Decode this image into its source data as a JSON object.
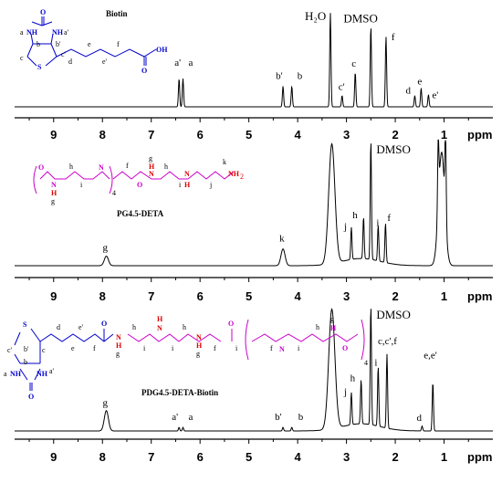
{
  "chart_data": [
    {
      "type": "line",
      "title": "Biotin",
      "xlabel": "ppm",
      "xlim": [
        9.8,
        0.0
      ],
      "xticks": [
        "9",
        "8",
        "7",
        "6",
        "5",
        "4",
        "3",
        "2",
        "1"
      ],
      "peaks": [
        {
          "label": "a'",
          "ppm": 6.43,
          "height": 0.3
        },
        {
          "label": "a",
          "ppm": 6.35,
          "height": 0.3
        },
        {
          "label": "b'",
          "ppm": 4.3,
          "height": 0.22
        },
        {
          "label": "b",
          "ppm": 4.12,
          "height": 0.22
        },
        {
          "label": "H₂O",
          "ppm": 3.33,
          "height": 1.0
        },
        {
          "label": "c'",
          "ppm": 3.09,
          "height": 0.12
        },
        {
          "label": "c",
          "ppm": 2.82,
          "height": 0.37
        },
        {
          "label": "DMSO",
          "ppm": 2.5,
          "height": 0.86
        },
        {
          "label": "f",
          "ppm": 2.19,
          "height": 0.75
        },
        {
          "label": "d",
          "ppm": 1.6,
          "height": 0.12
        },
        {
          "label": "e",
          "ppm": 1.47,
          "height": 0.2
        },
        {
          "label": "e'",
          "ppm": 1.32,
          "height": 0.13
        }
      ]
    },
    {
      "type": "line",
      "title": "PG4.5-DETA",
      "xlabel": "ppm",
      "xlim": [
        9.8,
        0.0
      ],
      "xticks": [
        "9",
        "8",
        "7",
        "6",
        "5",
        "4",
        "3",
        "2",
        "1"
      ],
      "peaks": [
        {
          "label": "g",
          "ppm": 7.92,
          "height": 0.08
        },
        {
          "label": "k",
          "ppm": 4.3,
          "height": 0.14
        },
        {
          "label": "",
          "ppm": 3.3,
          "height": 1.0
        },
        {
          "label": "j",
          "ppm": 2.9,
          "height": 0.27
        },
        {
          "label": "h",
          "ppm": 2.65,
          "height": 0.35
        },
        {
          "label": "DMSO",
          "ppm": 2.5,
          "height": 1.0
        },
        {
          "label": "i",
          "ppm": 2.35,
          "height": 0.3
        },
        {
          "label": "f",
          "ppm": 2.2,
          "height": 0.33
        },
        {
          "label": "",
          "ppm": 1.12,
          "height": 0.58
        },
        {
          "label": "",
          "ppm": 1.05,
          "height": 0.95
        },
        {
          "label": "",
          "ppm": 0.97,
          "height": 0.75
        }
      ]
    },
    {
      "type": "line",
      "title": "PDG4.5-DETA-Biotin",
      "xlabel": "ppm",
      "xlim": [
        9.8,
        0.0
      ],
      "xticks": [
        "9",
        "8",
        "7",
        "6",
        "5",
        "4",
        "3",
        "2",
        "1"
      ],
      "peaks": [
        {
          "label": "g",
          "ppm": 7.92,
          "height": 0.17
        },
        {
          "label": "a'",
          "ppm": 6.43,
          "height": 0.03
        },
        {
          "label": "a",
          "ppm": 6.35,
          "height": 0.03
        },
        {
          "label": "b'",
          "ppm": 4.3,
          "height": 0.03
        },
        {
          "label": "b",
          "ppm": 4.12,
          "height": 0.03
        },
        {
          "label": "",
          "ppm": 3.3,
          "height": 1.0
        },
        {
          "label": "j",
          "ppm": 2.9,
          "height": 0.27
        },
        {
          "label": "h",
          "ppm": 2.7,
          "height": 0.37
        },
        {
          "label": "DMSO",
          "ppm": 2.5,
          "height": 1.0
        },
        {
          "label": "i",
          "ppm": 2.35,
          "height": 0.5
        },
        {
          "label": "c,c',f",
          "ppm": 2.17,
          "height": 0.62
        },
        {
          "label": "d",
          "ppm": 1.45,
          "height": 0.04
        },
        {
          "label": "e,e'",
          "ppm": 1.23,
          "height": 0.41
        }
      ]
    }
  ],
  "structures": {
    "biotin": {
      "atoms": {
        "nh1": "NH",
        "nh2": "NH",
        "o": "O",
        "s": "S",
        "oh": "OH",
        "o2": "O"
      },
      "labels": {
        "a": "a",
        "a2": "a'",
        "b": "b",
        "b2": "b'",
        "c": "c",
        "c2": "c'",
        "d": "d",
        "e": "e",
        "e2": "e'",
        "f": "f"
      }
    },
    "pg": {
      "atoms": {
        "o1": "O",
        "nh1": "N",
        "h1": "H",
        "n2": "N",
        "o2": "O",
        "n3": "N",
        "h3": "H",
        "n4": "N",
        "h4": "H",
        "nh2": "NH",
        "sub2": "2"
      },
      "labels": {
        "g": "g",
        "h": "h",
        "i": "i",
        "f": "f",
        "g2": "g",
        "h2": "h",
        "i2": "i",
        "j": "j",
        "k": "k",
        "sub4": "4"
      }
    },
    "pdg": {
      "atoms": {
        "s": "S",
        "nh1": "NH",
        "nh2": "NH",
        "o": "O",
        "o2": "O",
        "n1": "N",
        "h1": "H",
        "n2": "N",
        "h2": "H",
        "n3": "N",
        "h3": "H",
        "o3": "O",
        "n4": "N",
        "h4": "H",
        "o4": "O"
      },
      "labels": {
        "a": "a",
        "a2": "a'",
        "b": "b",
        "b2": "b'",
        "c": "c",
        "c2": "c'",
        "d": "d",
        "e": "e",
        "e2": "e'",
        "f": "f",
        "g": "g",
        "h": "h",
        "i": "i",
        "f2": "f",
        "g2": "g",
        "h2": "h",
        "i2": "i",
        "f3": "f",
        "i3": "i",
        "h3": "h",
        "i4": "i",
        "g3": "g",
        "sub4": "4"
      }
    }
  }
}
